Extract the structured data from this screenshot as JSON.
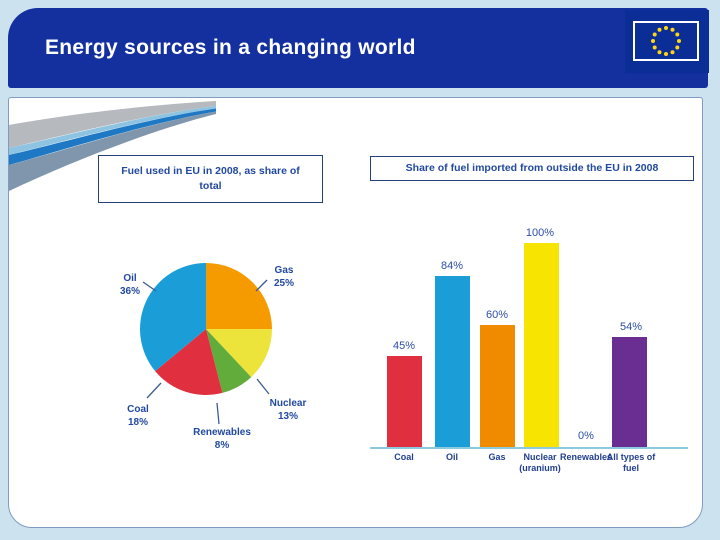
{
  "slide": {
    "title": "Energy sources in a changing world"
  },
  "theme": {
    "banner_blue": "#14309e",
    "flag_blue": "#0b2d96",
    "star_gold": "#ffd617",
    "page_background": "#cde2ef",
    "card_background": "#ffffff",
    "heading_text_blue": "#2149a0",
    "axis_light_blue": "#8ccadf"
  },
  "chart_data": [
    {
      "type": "pie",
      "title": "Fuel used  in EU in 2008, as share of total",
      "slices": [
        {
          "label": "Gas",
          "value": 25,
          "color": "#f59b00"
        },
        {
          "label": "Nuclear",
          "value": 13,
          "color": "#ece43a"
        },
        {
          "label": "Renewables",
          "value": 8,
          "color": "#62ac3c"
        },
        {
          "label": "Coal",
          "value": 18,
          "color": "#e02f3e"
        },
        {
          "label": "Oil",
          "value": 36,
          "color": "#1b9ed8"
        }
      ],
      "start_angle": "12 o'clock, clockwise",
      "label_format": "{label} {value}%"
    },
    {
      "type": "bar",
      "title": "Share of fuel imported from outside the EU in 2008",
      "categories": [
        "Coal",
        "Oil",
        "Gas",
        "Nuclear (uranium)",
        "Renewables",
        "All types of fuel"
      ],
      "values": [
        45,
        84,
        60,
        100,
        0,
        54
      ],
      "value_labels": [
        "45%",
        "84%",
        "60%",
        "100%",
        "0%",
        "54%"
      ],
      "colors": [
        "#e02f3e",
        "#1b9ed8",
        "#f08b00",
        "#f7e400",
        null,
        "#6a2d91"
      ],
      "ylim": [
        0,
        100
      ],
      "grid": false,
      "y_axis_shown": false,
      "legend": "none"
    }
  ]
}
